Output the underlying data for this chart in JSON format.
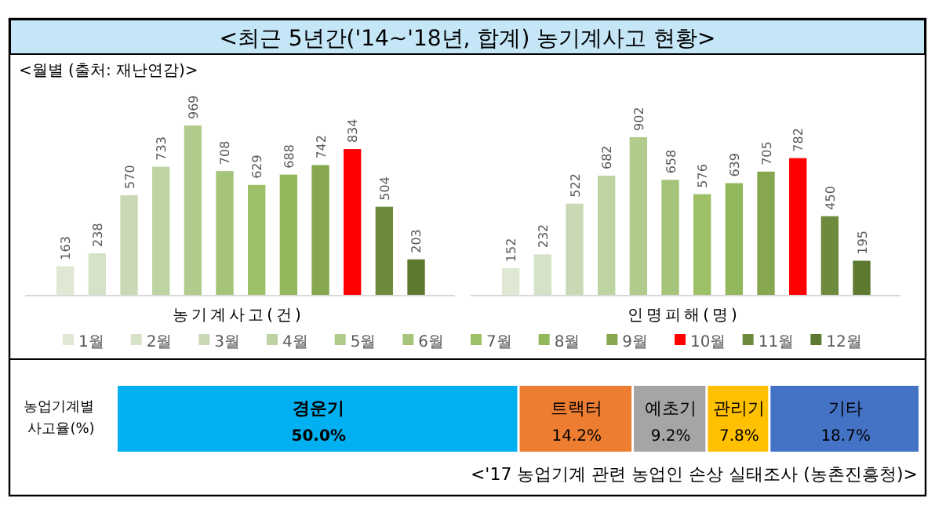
{
  "chart_data": [
    {
      "type": "bar",
      "title": "<최근 5년간('14~'18년, 합계) 농기계사고 현황>",
      "annotations": [
        "<월별 (출처: 재난연감)>"
      ],
      "categories": [
        "농기계사고(건)",
        "인명피해(명)"
      ],
      "data_labels": true,
      "legend": "bottom",
      "series": [
        {
          "name": "1월",
          "color": "#dfe8d3",
          "values": [
            163,
            152
          ]
        },
        {
          "name": "2월",
          "color": "#d5e2c7",
          "values": [
            238,
            232
          ]
        },
        {
          "name": "3월",
          "color": "#cad9b5",
          "values": [
            570,
            522
          ]
        },
        {
          "name": "4월",
          "color": "#bdd3a2",
          "values": [
            733,
            682
          ]
        },
        {
          "name": "5월",
          "color": "#b0cb8b",
          "values": [
            969,
            902
          ]
        },
        {
          "name": "6월",
          "color": "#a5c47a",
          "values": [
            708,
            658
          ]
        },
        {
          "name": "7월",
          "color": "#9dbf66",
          "values": [
            629,
            576
          ]
        },
        {
          "name": "8월",
          "color": "#93b85b",
          "values": [
            688,
            639
          ]
        },
        {
          "name": "9월",
          "color": "#86a74e",
          "values": [
            742,
            705
          ]
        },
        {
          "name": "10월",
          "color": "#ff0000",
          "values": [
            834,
            782
          ]
        },
        {
          "name": "11월",
          "color": "#6e8a3c",
          "values": [
            504,
            450
          ]
        },
        {
          "name": "12월",
          "color": "#5e7a30",
          "values": [
            203,
            195
          ]
        }
      ]
    },
    {
      "type": "bar",
      "orientation": "horizontal",
      "stacked": true,
      "ylabel": "농업기계별 사고율(%)",
      "categories": [
        null
      ],
      "annotations": [
        "<'17 농업기계 관련 농업인 손상 실태조사 (농촌진흥청)>"
      ],
      "series": [
        {
          "name": "경운기",
          "color": "#00b0f0",
          "values": [
            50.0
          ],
          "value_labels": [
            "50.0%"
          ]
        },
        {
          "name": "트랙터",
          "color": "#ed7d31",
          "values": [
            14.2
          ],
          "value_labels": [
            "14.2%"
          ]
        },
        {
          "name": "예초기",
          "color": "#a5a5a5",
          "values": [
            9.2
          ],
          "value_labels": [
            "9.2%"
          ]
        },
        {
          "name": "관리기",
          "color": "#ffc000",
          "values": [
            7.8
          ],
          "value_labels": [
            "7.8%"
          ]
        },
        {
          "name": "기타",
          "color": "#4472c4",
          "values": [
            18.7
          ],
          "value_labels": [
            "18.7%"
          ]
        }
      ]
    }
  ]
}
